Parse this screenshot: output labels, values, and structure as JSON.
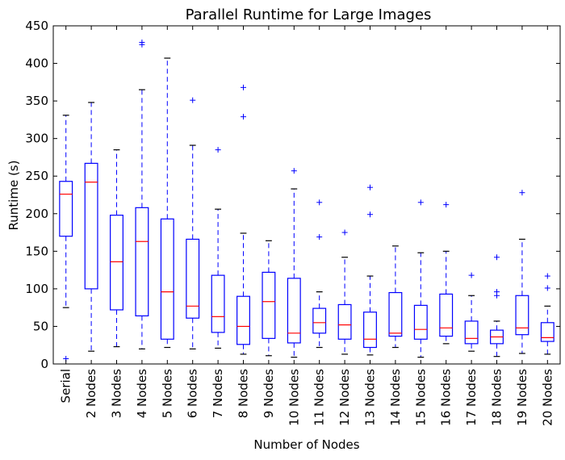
{
  "chart_data": {
    "type": "boxplot",
    "title": "Parallel Runtime for Large Images",
    "xlabel": "Number of Nodes",
    "ylabel": "Runtime (s)",
    "ylim": [
      0,
      450
    ],
    "yticks": [
      0,
      50,
      100,
      150,
      200,
      250,
      300,
      350,
      400,
      450
    ],
    "grid": false,
    "colors": {
      "box": "#0000ff",
      "median": "#ff0000",
      "whisker_cap": "#000000",
      "outlier": "#0000ff"
    },
    "categories": [
      "Serial",
      "2 Nodes",
      "3 Nodes",
      "4 Nodes",
      "5 Nodes",
      "6 Nodes",
      "7 Nodes",
      "8 Nodes",
      "9 Nodes",
      "10 Nodes",
      "11 Nodes",
      "12 Nodes",
      "13 Nodes",
      "14 Nodes",
      "15 Nodes",
      "16 Nodes",
      "17 Nodes",
      "18 Nodes",
      "19 Nodes",
      "20 Nodes"
    ],
    "boxes": [
      {
        "whisker_low": 75,
        "q1": 170,
        "median": 226,
        "q3": 243,
        "whisker_high": 331,
        "outliers": [
          7
        ]
      },
      {
        "whisker_low": 17,
        "q1": 100,
        "median": 242,
        "q3": 267,
        "whisker_high": 348,
        "outliers": []
      },
      {
        "whisker_low": 23,
        "q1": 72,
        "median": 136,
        "q3": 198,
        "whisker_high": 285,
        "outliers": []
      },
      {
        "whisker_low": 20,
        "q1": 64,
        "median": 163,
        "q3": 208,
        "whisker_high": 365,
        "outliers": [
          425,
          428
        ]
      },
      {
        "whisker_low": 22,
        "q1": 33,
        "median": 96,
        "q3": 193,
        "whisker_high": 407,
        "outliers": []
      },
      {
        "whisker_low": 20,
        "q1": 61,
        "median": 77,
        "q3": 166,
        "whisker_high": 291,
        "outliers": [
          351
        ]
      },
      {
        "whisker_low": 21,
        "q1": 42,
        "median": 63,
        "q3": 118,
        "whisker_high": 206,
        "outliers": [
          285
        ]
      },
      {
        "whisker_low": 13,
        "q1": 26,
        "median": 50,
        "q3": 90,
        "whisker_high": 174,
        "outliers": [
          329,
          368
        ]
      },
      {
        "whisker_low": 11,
        "q1": 34,
        "median": 83,
        "q3": 122,
        "whisker_high": 164,
        "outliers": []
      },
      {
        "whisker_low": 9,
        "q1": 28,
        "median": 41,
        "q3": 114,
        "whisker_high": 233,
        "outliers": [
          257
        ]
      },
      {
        "whisker_low": 22,
        "q1": 41,
        "median": 55,
        "q3": 74,
        "whisker_high": 96,
        "outliers": [
          169,
          215
        ]
      },
      {
        "whisker_low": 13,
        "q1": 33,
        "median": 52,
        "q3": 79,
        "whisker_high": 142,
        "outliers": [
          175
        ]
      },
      {
        "whisker_low": 12,
        "q1": 22,
        "median": 33,
        "q3": 69,
        "whisker_high": 117,
        "outliers": [
          199,
          235
        ]
      },
      {
        "whisker_low": 22,
        "q1": 37,
        "median": 41,
        "q3": 95,
        "whisker_high": 157,
        "outliers": []
      },
      {
        "whisker_low": 9,
        "q1": 33,
        "median": 46,
        "q3": 78,
        "whisker_high": 148,
        "outliers": [
          215
        ]
      },
      {
        "whisker_low": 27,
        "q1": 37,
        "median": 48,
        "q3": 93,
        "whisker_high": 150,
        "outliers": [
          212
        ]
      },
      {
        "whisker_low": 17,
        "q1": 27,
        "median": 34,
        "q3": 57,
        "whisker_high": 91,
        "outliers": [
          118
        ]
      },
      {
        "whisker_low": 10,
        "q1": 27,
        "median": 36,
        "q3": 45,
        "whisker_high": 57,
        "outliers": [
          91,
          96,
          142
        ]
      },
      {
        "whisker_low": 14,
        "q1": 39,
        "median": 48,
        "q3": 91,
        "whisker_high": 166,
        "outliers": [
          228
        ]
      },
      {
        "whisker_low": 13,
        "q1": 30,
        "median": 35,
        "q3": 55,
        "whisker_high": 77,
        "outliers": [
          101,
          117
        ]
      }
    ]
  }
}
